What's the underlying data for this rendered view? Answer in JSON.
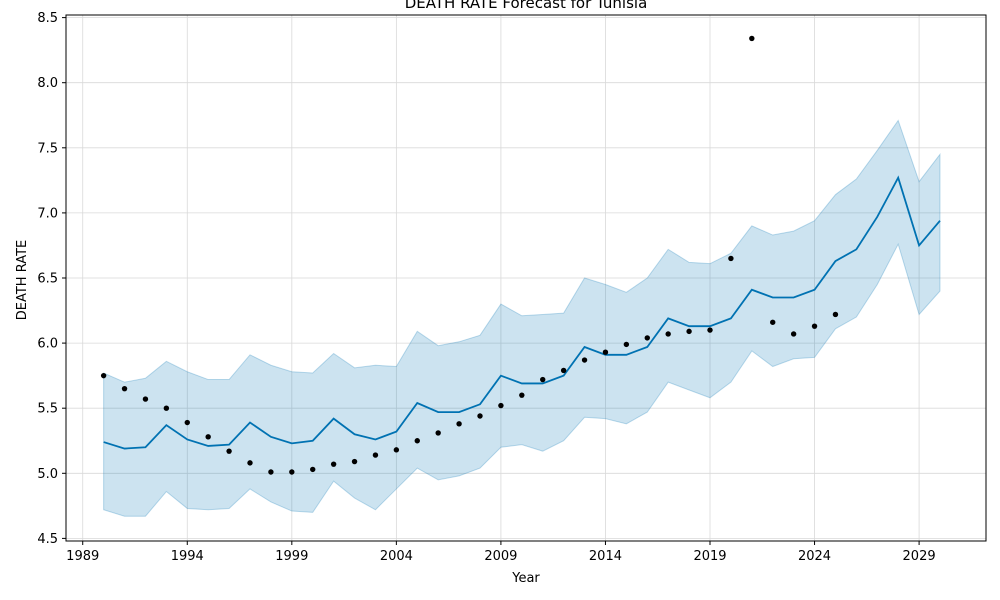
{
  "chart_data": {
    "type": "line",
    "title": "DEATH RATE Forecast for Tunisia",
    "xlabel": "Year",
    "ylabel": "DEATH RATE",
    "xlim": [
      1988.2,
      2032.2
    ],
    "ylim": [
      4.48,
      8.52
    ],
    "x_ticks": [
      1989,
      1994,
      1999,
      2004,
      2009,
      2014,
      2019,
      2024,
      2029
    ],
    "y_ticks": [
      4.5,
      5.0,
      5.5,
      6.0,
      6.5,
      7.0,
      7.5,
      8.0,
      8.5
    ],
    "grid": true,
    "colors": {
      "forecast": "#0072B2",
      "band": "#0072B2",
      "actual": "#000000",
      "grid": "#d9d9d9"
    },
    "observed": {
      "x": [
        1990,
        1991,
        1992,
        1993,
        1994,
        1995,
        1996,
        1997,
        1998,
        1999,
        2000,
        2001,
        2002,
        2003,
        2004,
        2005,
        2006,
        2007,
        2008,
        2009,
        2010,
        2011,
        2012,
        2013,
        2014,
        2015,
        2016,
        2017,
        2018,
        2019,
        2020,
        2021,
        2022,
        2023,
        2024,
        2025
      ],
      "y": [
        5.75,
        5.65,
        5.57,
        5.5,
        5.39,
        5.28,
        5.17,
        5.08,
        5.01,
        5.01,
        5.03,
        5.07,
        5.09,
        5.14,
        5.18,
        5.25,
        5.31,
        5.38,
        5.44,
        5.52,
        5.6,
        5.72,
        5.79,
        5.87,
        5.93,
        5.99,
        6.04,
        6.07,
        6.09,
        6.1,
        6.65,
        8.34,
        6.16,
        6.07,
        6.13,
        6.22
      ]
    },
    "forecast": {
      "x": [
        1990,
        1991,
        1992,
        1993,
        1994,
        1995,
        1996,
        1997,
        1998,
        1999,
        2000,
        2001,
        2002,
        2003,
        2004,
        2005,
        2006,
        2007,
        2008,
        2009,
        2010,
        2011,
        2012,
        2013,
        2014,
        2015,
        2016,
        2017,
        2018,
        2019,
        2020,
        2021,
        2022,
        2023,
        2024,
        2025,
        2026,
        2027,
        2028,
        2029,
        2030
      ],
      "yhat": [
        5.24,
        5.19,
        5.2,
        5.37,
        5.26,
        5.21,
        5.22,
        5.39,
        5.28,
        5.23,
        5.25,
        5.42,
        5.3,
        5.26,
        5.32,
        5.54,
        5.47,
        5.47,
        5.53,
        5.75,
        5.69,
        5.69,
        5.75,
        5.97,
        5.91,
        5.91,
        5.97,
        6.19,
        6.13,
        6.13,
        6.19,
        6.41,
        6.35,
        6.35,
        6.41,
        6.63,
        6.72,
        6.97,
        7.27,
        6.75,
        6.94
      ],
      "lower": [
        4.72,
        4.67,
        4.67,
        4.86,
        4.73,
        4.72,
        4.73,
        4.88,
        4.78,
        4.71,
        4.7,
        4.94,
        4.81,
        4.72,
        4.88,
        5.04,
        4.95,
        4.98,
        5.04,
        5.2,
        5.22,
        5.17,
        5.25,
        5.43,
        5.42,
        5.38,
        5.47,
        5.7,
        5.64,
        5.58,
        5.7,
        5.94,
        5.82,
        5.88,
        5.89,
        6.11,
        6.2,
        6.45,
        6.76,
        6.22,
        6.4
      ],
      "upper": [
        5.77,
        5.7,
        5.73,
        5.86,
        5.78,
        5.72,
        5.72,
        5.91,
        5.83,
        5.78,
        5.77,
        5.92,
        5.81,
        5.83,
        5.82,
        6.09,
        5.98,
        6.01,
        6.06,
        6.3,
        6.21,
        6.22,
        6.23,
        6.5,
        6.45,
        6.39,
        6.5,
        6.72,
        6.62,
        6.61,
        6.69,
        6.9,
        6.83,
        6.86,
        6.94,
        7.14,
        7.26,
        7.48,
        7.71,
        7.24,
        7.45
      ]
    }
  }
}
